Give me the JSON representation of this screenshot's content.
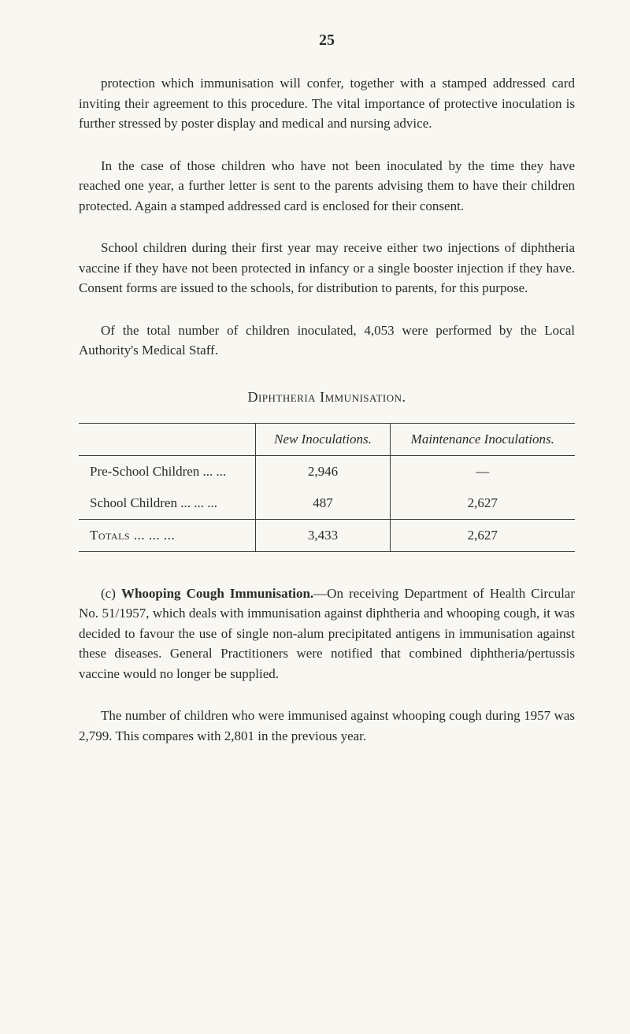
{
  "page_number": "25",
  "paragraphs": {
    "p1": "protection which immunisation will confer, together with a stamped addressed card inviting their agreement to this procedure. The vital importance of protective inoculation is further stressed by poster display and medical and nursing advice.",
    "p2": "In the case of those children who have not been inoculated by the time they have reached one year, a further letter is sent to the parents advising them to have their children protected. Again a stamped addressed card is enclosed for their consent.",
    "p3": "School children during their first year may receive either two injections of diphtheria vaccine if they have not been protected in infancy or a single booster injection if they have. Consent forms are issued to the schools, for distribution to parents, for this purpose.",
    "p4": "Of the total number of children inoculated, 4,053 were performed by the Local Authority's Medical Staff.",
    "p5a": "(c) ",
    "p5b": "Whooping Cough Immunisation.",
    "p5c": "—On receiving Department of Health Circular No. 51/1957, which deals with immunisation against diphtheria and whooping cough, it was decided to favour the use of single non-alum precipitated antigens in immunisation against these diseases. General Practitioners were notified that combined diphtheria/pertussis vaccine would no longer be supplied.",
    "p6": "The number of children who were immunised against whooping cough during 1957 was 2,799. This compares with 2,801 in the previous year."
  },
  "table": {
    "title": "Diphtheria Immunisation.",
    "col1": "New Inoculations.",
    "col2": "Maintenance Inoculations.",
    "rows": [
      {
        "label": "Pre-School Children   ...      ...",
        "new": "2,946",
        "maint": "—"
      },
      {
        "label": "School Children ...        ...        ...",
        "new": "487",
        "maint": "2,627"
      }
    ],
    "totals": {
      "label": "Totals   ...        ...        ...",
      "new": "3,433",
      "maint": "2,627"
    }
  }
}
